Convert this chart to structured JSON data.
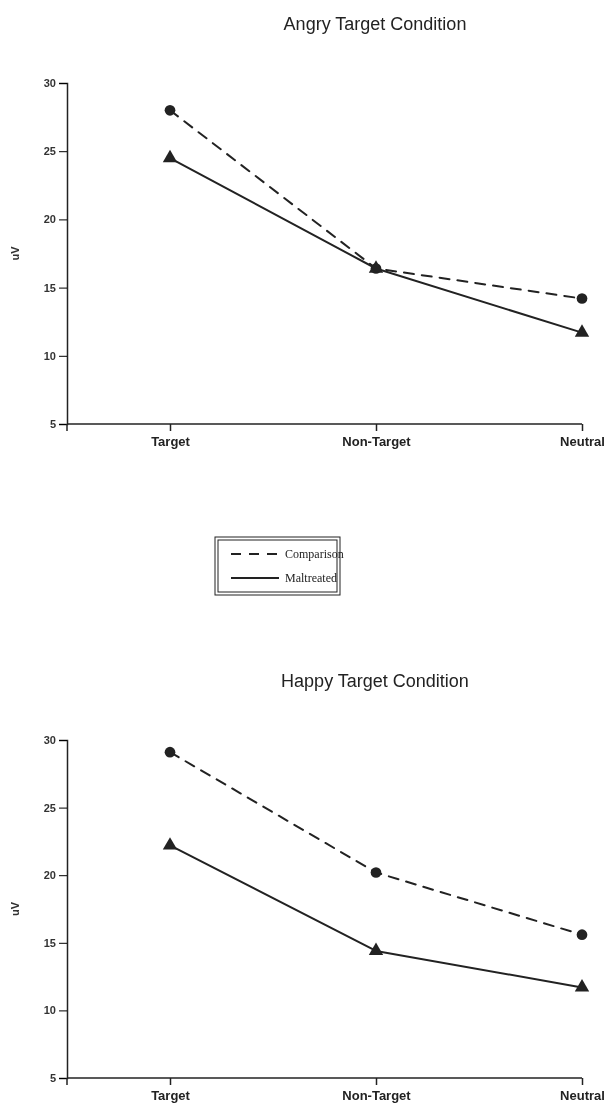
{
  "chart_data": [
    {
      "type": "line",
      "title": "Angry Target Condition",
      "ylabel": "uV",
      "categories": [
        "Target",
        "Non-Target",
        "Neutral"
      ],
      "ylim": [
        5,
        30
      ],
      "yticks": [
        5,
        10,
        15,
        20,
        25,
        30
      ],
      "grid": false,
      "legend": "bottom",
      "series": [
        {
          "name": "Comparison",
          "color": "#222222",
          "values": [
            28,
            16.4,
            14.2
          ],
          "marker": "circle",
          "line_style": "dashed"
        },
        {
          "name": "Maltreated",
          "color": "#222222",
          "values": [
            24.5,
            16.4,
            11.7
          ],
          "marker": "triangle",
          "line_style": "solid"
        }
      ]
    },
    {
      "type": "line",
      "title": "Happy Target Condition",
      "ylabel": "uV",
      "categories": [
        "Target",
        "Non-Target",
        "Neutral"
      ],
      "ylim": [
        5,
        30
      ],
      "yticks": [
        5,
        10,
        15,
        20,
        25,
        30
      ],
      "grid": false,
      "series": [
        {
          "color": "#222222",
          "values": [
            29.1,
            20.2,
            15.6
          ],
          "marker": "circle",
          "line_style": "dashed"
        },
        {
          "color": "#222222",
          "values": [
            22.2,
            14.4,
            11.7
          ],
          "marker": "triangle",
          "line_style": "solid"
        }
      ]
    }
  ]
}
